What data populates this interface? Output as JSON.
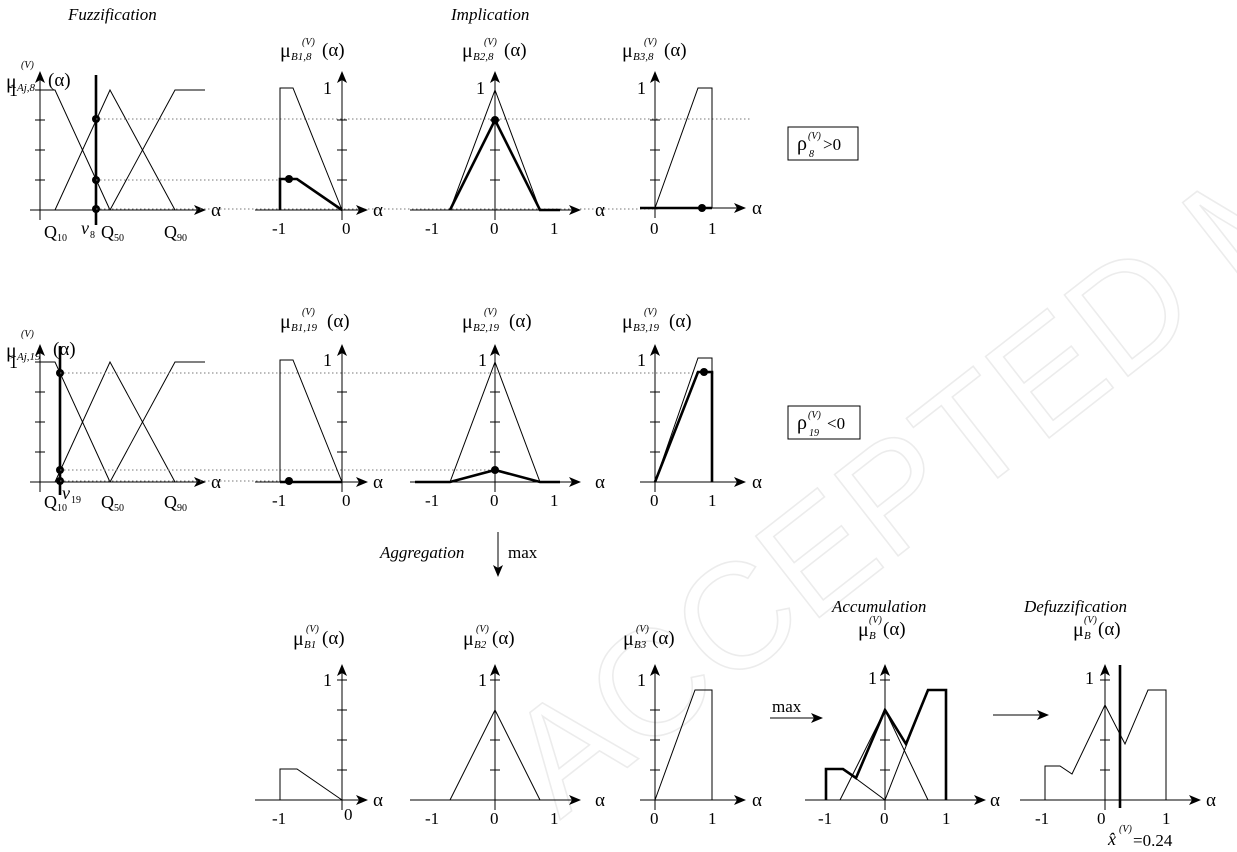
{
  "stages": {
    "fuzzification": "Fuzzification",
    "implication": "Implication",
    "aggregation": "Aggregation",
    "aggregation_op": "max",
    "accumulation": "Accumulation",
    "accumulation_op": "max",
    "defuzzification": "Defuzzification"
  },
  "mu_symbol": "μ",
  "alpha": "α",
  "arg": "(α)",
  "sup": "(V)",
  "one": "1",
  "ticks": {
    "neg_one": "-1",
    "zero": "0",
    "one": "1"
  },
  "rows": {
    "r8": {
      "sub_a": "Aj,8",
      "sub_b1": "B1,8",
      "sub_b2": "B2,8",
      "sub_b3": "B3,8",
      "v_label": "v",
      "v_sub": "8",
      "rho_sym": "ρ",
      "rho_sub": "8",
      "rho_rel": ">0"
    },
    "r19": {
      "sub_a": "Aj,19",
      "sub_b1": "B1,19",
      "sub_b2": "B2,19",
      "sub_b3": "B3,19",
      "v_label": "v",
      "v_sub": "19",
      "rho_sym": "ρ",
      "rho_sub": "19",
      "rho_rel": "<0"
    }
  },
  "quantiles": [
    {
      "q": "Q",
      "sub": "10"
    },
    {
      "q": "Q",
      "sub": "50"
    },
    {
      "q": "Q",
      "sub": "90"
    }
  ],
  "aggregated": {
    "sub_b1": "B1",
    "sub_b2": "B2",
    "sub_b3": "B3",
    "sub_b": "B"
  },
  "result": {
    "hat_symbol": "x̂",
    "value": "=0.24"
  },
  "watermark": "ACCEPTED MANUSCRIPT",
  "membership_levels": {
    "row8": {
      "A1": 0.75,
      "A2": 0.25,
      "A3": 0.0
    },
    "row19": {
      "A1": 0.88,
      "A2": 0.1,
      "A3": 0.0
    }
  },
  "aggregated_heights": {
    "B1": 0.25,
    "B2": 0.75,
    "B3": 0.88
  },
  "defuzzified_x": 0.24
}
